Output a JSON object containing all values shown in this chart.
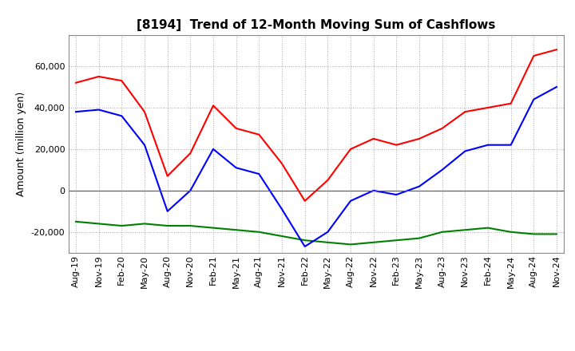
{
  "title": "[8194]  Trend of 12-Month Moving Sum of Cashflows",
  "ylabel": "Amount (million yen)",
  "ylim": [
    -30000,
    75000
  ],
  "yticks": [
    -20000,
    0,
    20000,
    40000,
    60000
  ],
  "x_labels": [
    "Aug-19",
    "Nov-19",
    "Feb-20",
    "May-20",
    "Aug-20",
    "Nov-20",
    "Feb-21",
    "May-21",
    "Aug-21",
    "Nov-21",
    "Feb-22",
    "May-22",
    "Aug-22",
    "Nov-22",
    "Feb-23",
    "May-23",
    "Aug-23",
    "Nov-23",
    "Feb-24",
    "May-24",
    "Aug-24",
    "Nov-24"
  ],
  "operating_cashflow": [
    52000,
    55000,
    53000,
    38000,
    7000,
    18000,
    41000,
    30000,
    27000,
    13000,
    -5000,
    5000,
    20000,
    25000,
    22000,
    25000,
    30000,
    38000,
    40000,
    42000,
    65000,
    68000
  ],
  "investing_cashflow": [
    -15000,
    -16000,
    -17000,
    -16000,
    -17000,
    -17000,
    -18000,
    -19000,
    -20000,
    -22000,
    -24000,
    -25000,
    -26000,
    -25000,
    -24000,
    -23000,
    -20000,
    -19000,
    -18000,
    -20000,
    -21000,
    -21000
  ],
  "free_cashflow": [
    38000,
    39000,
    36000,
    22000,
    -10000,
    0,
    20000,
    11000,
    8000,
    -9000,
    -27000,
    -20000,
    -5000,
    0,
    -2000,
    2000,
    10000,
    19000,
    22000,
    22000,
    44000,
    50000
  ],
  "operating_color": "#ff0000",
  "investing_color": "#008000",
  "free_color": "#0000ff",
  "background_color": "#ffffff",
  "grid_color": "#aaaaaa",
  "title_fontsize": 11,
  "label_fontsize": 9,
  "tick_fontsize": 8,
  "legend_fontsize": 9
}
